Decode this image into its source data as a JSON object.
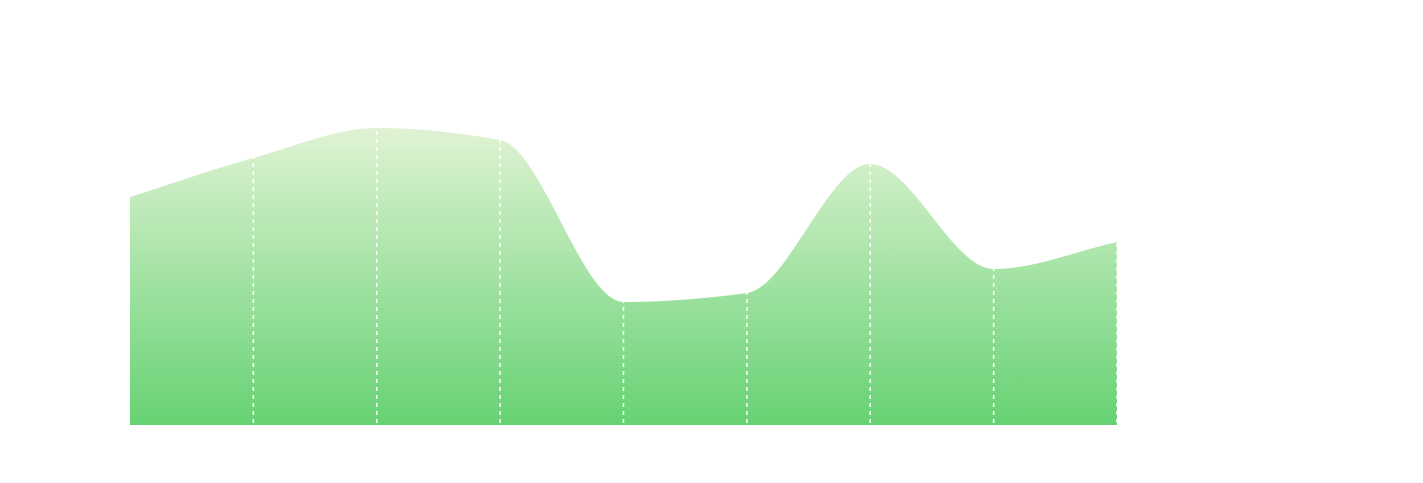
{
  "chart_data": {
    "type": "area",
    "x": [
      0,
      1,
      2,
      3,
      4,
      5,
      6,
      7,
      8
    ],
    "values": [
      76,
      89,
      99,
      95,
      41,
      44,
      87,
      52,
      61
    ],
    "ylim": [
      0,
      100
    ],
    "grid": true,
    "title": "",
    "xlabel": "",
    "ylabel": "",
    "colors": {
      "fill_top": "#e0f3d4",
      "fill_bottom": "#66d273",
      "grid": "#ffffff"
    }
  }
}
